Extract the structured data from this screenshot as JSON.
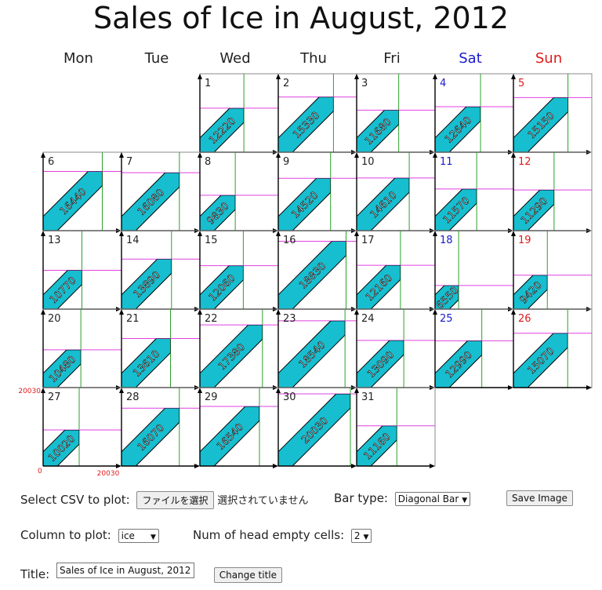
{
  "title": "Sales of Ice in August, 2012",
  "weekdays": [
    "Mon",
    "Tue",
    "Wed",
    "Thu",
    "Fri",
    "Sat",
    "Sun"
  ],
  "weekday_colors": [
    "#222222",
    "#222222",
    "#222222",
    "#222222",
    "#222222",
    "#1a1acc",
    "#e01b1b"
  ],
  "colors": {
    "bar_fill": "#17becf",
    "axis": "#000000",
    "grid_v": "#2ca02c",
    "grid_h": "#e040e0",
    "axis_label": "#e01b1b"
  },
  "axis_labels": {
    "origin": "0",
    "y_max": "20030",
    "x_max": "20030"
  },
  "chart_data": {
    "type": "bar",
    "bar_style": "diagonal",
    "month": "August, 2012",
    "head_empty_cells": 2,
    "max_value": 20030,
    "days": [
      "1",
      "2",
      "3",
      "4",
      "5",
      "6",
      "7",
      "8",
      "9",
      "10",
      "11",
      "12",
      "13",
      "14",
      "15",
      "16",
      "17",
      "18",
      "19",
      "20",
      "21",
      "22",
      "23",
      "24",
      "25",
      "26",
      "27",
      "28",
      "29",
      "30",
      "31"
    ],
    "values": [
      12220,
      15330,
      11680,
      12640,
      15150,
      16440,
      16080,
      9830,
      14520,
      14610,
      11570,
      11290,
      10770,
      13890,
      12060,
      18830,
      12160,
      6550,
      9420,
      10480,
      13610,
      17380,
      18540,
      13090,
      12990,
      15070,
      10020,
      16070,
      16540,
      20030,
      11160
    ]
  },
  "controls": {
    "csv_label": "Select CSV to plot:",
    "file_button": "ファイルを選択",
    "file_status": "選択されていません",
    "bar_type_label": "Bar type:",
    "bar_type_value": "Diagonal Bar",
    "save_button": "Save Image",
    "column_label": "Column to plot:",
    "column_value": "ice",
    "empty_cells_label": "Num of head empty cells:",
    "empty_cells_value": "2",
    "title_label": "Title:",
    "title_value": "Sales of Ice in August, 2012",
    "change_title_button": "Change title"
  }
}
